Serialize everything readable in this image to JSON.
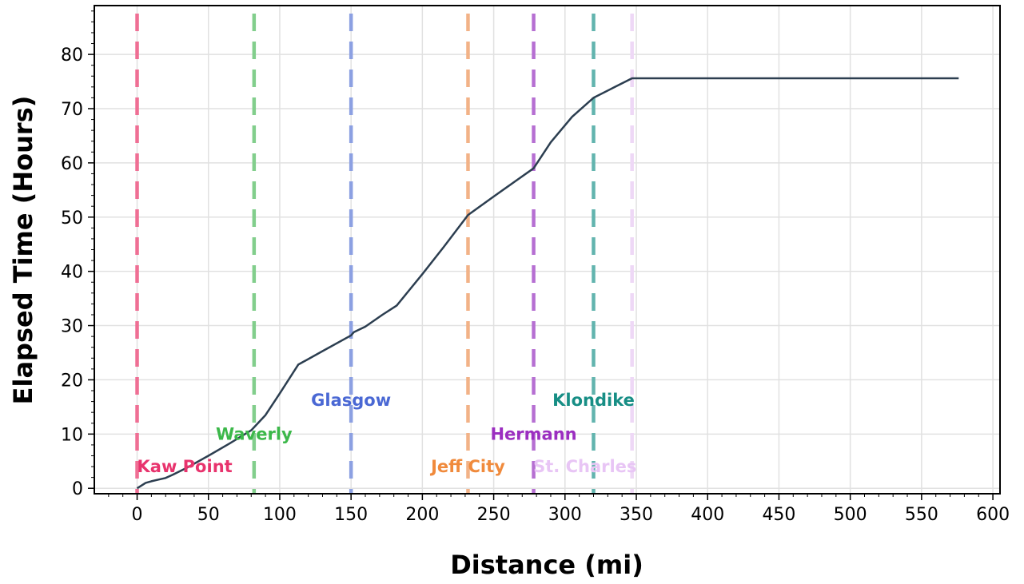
{
  "chart_data": {
    "type": "line",
    "title": "",
    "xlabel": "Distance (mi)",
    "ylabel": "Elapsed Time (Hours)",
    "xlim": [
      -30,
      605
    ],
    "ylim": [
      -1,
      89
    ],
    "xticks": [
      0,
      50,
      100,
      150,
      200,
      250,
      300,
      350,
      400,
      450,
      500,
      550,
      600
    ],
    "yticks": [
      0,
      10,
      20,
      30,
      40,
      50,
      60,
      70,
      80
    ],
    "grid": true,
    "legend": "none",
    "series": [
      {
        "color": "#2c3e50",
        "x": [
          0,
          3,
          6,
          10,
          15,
          20,
          25,
          35,
          50,
          65,
          80,
          90,
          100,
          113,
          130,
          150,
          152,
          160,
          172,
          182,
          200,
          215,
          232,
          250,
          265,
          278,
          290,
          305,
          320,
          335,
          347,
          400,
          500,
          576
        ],
        "y": [
          0,
          0.5,
          1,
          1.3,
          1.6,
          1.9,
          2.5,
          3.8,
          6,
          8.3,
          10.7,
          13.5,
          17.5,
          22.8,
          25.3,
          28.2,
          28.8,
          29.8,
          32,
          33.7,
          39.5,
          44.5,
          50.4,
          53.8,
          56.6,
          59,
          63.8,
          68.5,
          72,
          74,
          75.6,
          75.6,
          75.6,
          75.6
        ]
      }
    ],
    "markers": [
      {
        "label": "Kaw Point",
        "x": 0,
        "label_x": 0,
        "label_y": 4,
        "anchor": "start",
        "color": "#e8336d",
        "line_color": "#ef6f94"
      },
      {
        "label": "Waverly",
        "x": 82,
        "label_x": 82,
        "label_y": 10,
        "anchor": "middle",
        "color": "#3cb84a",
        "line_color": "#82ce8c"
      },
      {
        "label": "Glasgow",
        "x": 150,
        "label_x": 150,
        "label_y": 16.2,
        "anchor": "middle",
        "color": "#4a68d4",
        "line_color": "#8ca0e2"
      },
      {
        "label": "Jeff City",
        "x": 232,
        "label_x": 232,
        "label_y": 4,
        "anchor": "middle",
        "color": "#f08a3c",
        "line_color": "#f2b287"
      },
      {
        "label": "Hermann",
        "x": 278,
        "label_x": 278,
        "label_y": 10,
        "anchor": "middle",
        "color": "#9b2ec0",
        "line_color": "#b66fd2"
      },
      {
        "label": "Klondike",
        "x": 320,
        "label_x": 320,
        "label_y": 16.2,
        "anchor": "middle",
        "color": "#178e85",
        "line_color": "#62b4ae"
      },
      {
        "label": "St. Charles",
        "x": 347,
        "label_x": 314,
        "label_y": 4,
        "anchor": "middle",
        "color": "#e8c5f5",
        "line_color": "#eed8f6"
      }
    ]
  }
}
